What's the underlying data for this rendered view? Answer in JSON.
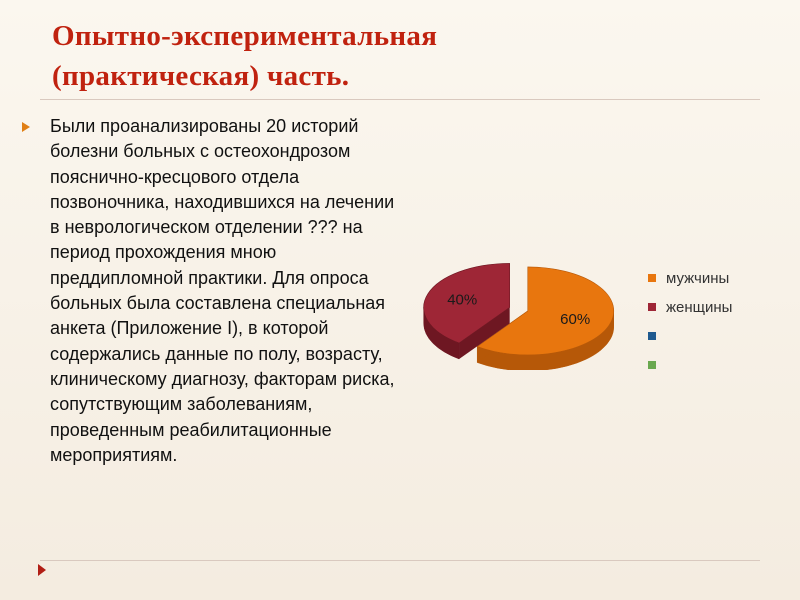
{
  "slide": {
    "title_line1": "Опытно-экспериментальная",
    "title_line2": "(практическая) часть.",
    "body": "Были проанализированы 20 историй болезни  больных с остеохондрозом пояснично-кресцового отдела позвоночника, находившихся на лечении в неврологическом отделении ??? на период прохождения мною преддипломной практики.  Для опроса больных была составлена специальная анкета (Приложение I), в которой содержались данные по полу, возрасту, клиническому диагнозу, факторам риска, сопутствующим заболеваниям, проведенным реабилитационные мероприятиям."
  },
  "chart_data": {
    "type": "pie",
    "title": "",
    "legend_position": "right",
    "slices": [
      {
        "name": "мужчины",
        "value": 60,
        "label": "60%",
        "color": "#e8760e",
        "side_color": "#b65808"
      },
      {
        "name": "женщины",
        "value": 40,
        "label": "40%",
        "color": "#9e2636",
        "side_color": "#6e1722"
      }
    ],
    "legend": [
      {
        "name": "мужчины",
        "color": "#e8760e"
      },
      {
        "name": "женщины",
        "color": "#9e2636"
      },
      {
        "name": "",
        "color": "#1f5a8f"
      },
      {
        "name": "",
        "color": "#6aa84f"
      }
    ]
  },
  "colors": {
    "title": "#c0220f",
    "bullet": "#e07f15",
    "rule": "#d9c9bf"
  }
}
